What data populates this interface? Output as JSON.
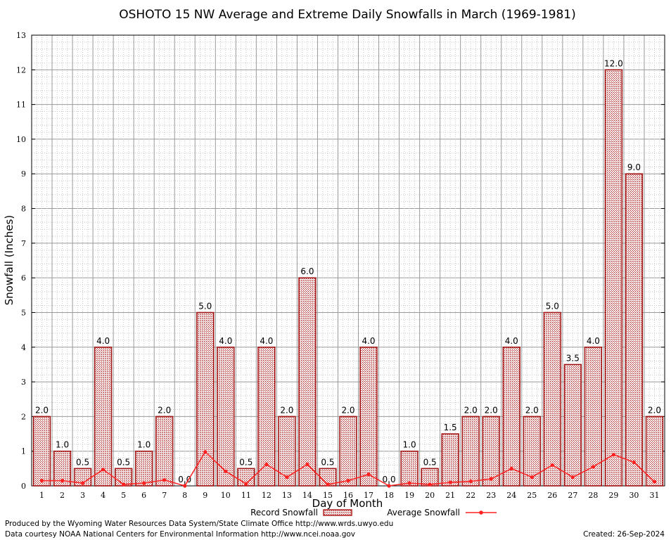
{
  "chart_data": {
    "type": "bar",
    "title": "OSHOTO 15 NW Average and Extreme Daily Snowfalls in March (1969-1981)",
    "xlabel": "Day of Month",
    "ylabel": "Snowfall (Inches)",
    "ylim": [
      0,
      13
    ],
    "yticks": [
      "0",
      "1",
      "2",
      "3",
      "4",
      "5",
      "6",
      "7",
      "8",
      "9",
      "10",
      "11",
      "12",
      "13"
    ],
    "categories": [
      "1",
      "2",
      "3",
      "4",
      "5",
      "6",
      "7",
      "8",
      "9",
      "10",
      "11",
      "12",
      "13",
      "14",
      "15",
      "16",
      "17",
      "18",
      "19",
      "20",
      "21",
      "22",
      "23",
      "24",
      "25",
      "26",
      "27",
      "28",
      "29",
      "30",
      "31"
    ],
    "series": [
      {
        "name": "Record Snowfall",
        "type": "bar",
        "color": "#b22222",
        "values": [
          2.0,
          1.0,
          0.5,
          4.0,
          0.5,
          1.0,
          2.0,
          0.0,
          5.0,
          4.0,
          0.5,
          4.0,
          2.0,
          6.0,
          0.5,
          2.0,
          4.0,
          0.0,
          1.0,
          0.5,
          1.5,
          2.0,
          2.0,
          4.0,
          2.0,
          5.0,
          3.5,
          4.0,
          12.0,
          9.0,
          2.0
        ],
        "labels": [
          "2.0",
          "1.0",
          "0.5",
          "4.0",
          "0.5",
          "1.0",
          "2.0",
          "0.0",
          "5.0",
          "4.0",
          "0.5",
          "4.0",
          "2.0",
          "6.0",
          "0.5",
          "2.0",
          "4.0",
          "0.0",
          "1.0",
          "0.5",
          "1.5",
          "2.0",
          "2.0",
          "4.0",
          "2.0",
          "5.0",
          "3.5",
          "4.0",
          "12.0",
          "9.0",
          "2.0"
        ]
      },
      {
        "name": "Average Snowfall",
        "type": "line",
        "color": "#ff2020",
        "values": [
          0.15,
          0.15,
          0.08,
          0.47,
          0.04,
          0.08,
          0.17,
          0.0,
          0.98,
          0.42,
          0.06,
          0.62,
          0.25,
          0.62,
          0.04,
          0.15,
          0.33,
          0.0,
          0.08,
          0.04,
          0.1,
          0.13,
          0.2,
          0.5,
          0.25,
          0.6,
          0.25,
          0.55,
          0.9,
          0.68,
          0.12
        ]
      }
    ],
    "legend": {
      "position": "bottom-center",
      "entries": [
        "Record Snowfall",
        "Average Snowfall"
      ]
    },
    "grid": true
  },
  "footer": {
    "produced_by": "Produced by the Wyoming Water Resources Data System/State Climate Office http://www.wrds.uwyo.edu",
    "data_courtesy": "Data courtesy NOAA National Centers for Environmental Information http://www.ncei.noaa.gov",
    "created": "Created: 26-Sep-2024"
  }
}
